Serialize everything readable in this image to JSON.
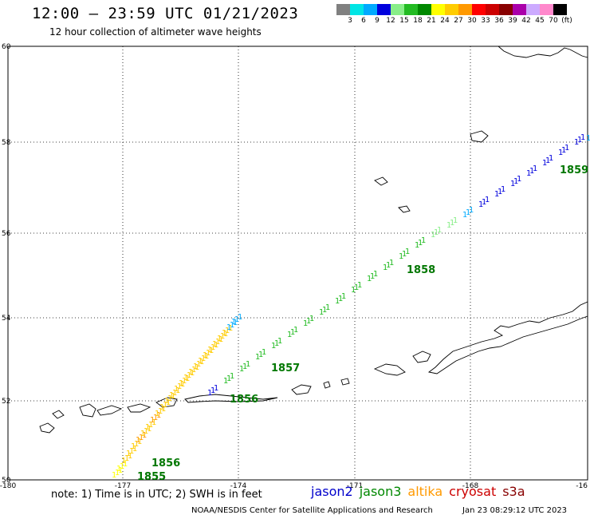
{
  "header": {
    "title": "12:00 — 23:59 UTC 01/21/2023",
    "subtitle": "12 hour collection of altimeter wave heights"
  },
  "colorbar": {
    "swatches": [
      "#808080",
      "#00e5e5",
      "#00aaff",
      "#0000dd",
      "#88ee88",
      "#22bb22",
      "#008800",
      "#ffff00",
      "#ffcc00",
      "#ff9900",
      "#ff0000",
      "#cc0000",
      "#880000",
      "#aa00aa",
      "#ccaaff",
      "#ff88cc",
      "#000000"
    ],
    "labels": [
      "3",
      "6",
      "9",
      "12",
      "15",
      "18",
      "21",
      "24",
      "27",
      "30",
      "33",
      "36",
      "39",
      "42",
      "45",
      "70",
      "(ft)"
    ]
  },
  "axes": {
    "lat_labels": [
      "60",
      "58",
      "56",
      "54",
      "52",
      "50"
    ],
    "lon_labels": [
      "-180",
      "-177",
      "-174",
      "-171",
      "-168",
      "-16"
    ]
  },
  "tracks": [
    {
      "x": [
        140,
        146,
        152,
        158,
        164,
        170,
        176,
        182,
        188,
        194,
        200,
        206,
        212,
        218,
        224,
        230,
        236,
        242,
        248,
        254,
        260,
        266,
        272,
        278,
        284,
        290
      ],
      "y": [
        598,
        590,
        580,
        571,
        562,
        554,
        546,
        538,
        529,
        521,
        513,
        505,
        498,
        490,
        483,
        476,
        469,
        462,
        455,
        448,
        441,
        434,
        427,
        420,
        413,
        406
      ]
    },
    {
      "x": [
        260,
        280,
        300,
        320,
        340,
        360,
        380,
        400,
        420,
        440,
        460,
        480,
        500,
        520,
        540,
        560,
        580,
        600,
        620,
        640,
        660,
        680,
        700,
        720,
        735
      ],
      "y": [
        495,
        480,
        465,
        450,
        436,
        422,
        408,
        394,
        380,
        366,
        352,
        338,
        324,
        310,
        297,
        285,
        272,
        259,
        246,
        233,
        220,
        207,
        194,
        181,
        176
      ]
    }
  ],
  "track_labels": [
    {
      "text": "1855",
      "lon_pos": "track1-start",
      "color": "#007700"
    },
    {
      "text": "1856",
      "lon_pos": "track1-mid",
      "color": "#007700"
    },
    {
      "text": "1856",
      "lon_pos": "track2-start",
      "color": "#007700"
    },
    {
      "text": "1857",
      "lon_pos": "track2-1",
      "color": "#007700"
    },
    {
      "text": "1858",
      "lon_pos": "track2-2",
      "color": "#007700"
    },
    {
      "text": "1859",
      "lon_pos": "track2-end",
      "color": "#007700"
    }
  ],
  "footer": {
    "note": "note: 1) Time is in UTC; 2) SWH is in feet",
    "legend": [
      {
        "label": "jason2",
        "color": "#0000cc"
      },
      {
        "label": "jason3",
        "color": "#008800"
      },
      {
        "label": "altika",
        "color": "#ff9900"
      },
      {
        "label": "cryosat",
        "color": "#cc0000"
      },
      {
        "label": "s3a",
        "color": "#880000"
      }
    ],
    "credit": "NOAA/NESDIS Center for Satellite Applications and Research",
    "timestamp": "Jan 23 08:29:12 UTC 2023"
  }
}
